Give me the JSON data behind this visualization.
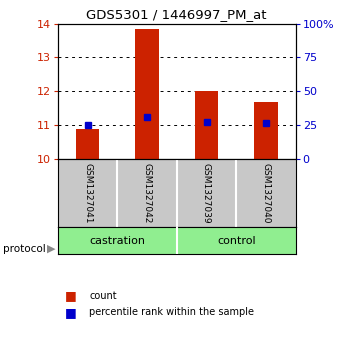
{
  "title": "GDS5301 / 1446997_PM_at",
  "samples": [
    "GSM1327041",
    "GSM1327042",
    "GSM1327039",
    "GSM1327040"
  ],
  "bar_tops": [
    10.9,
    13.85,
    12.0,
    11.7
  ],
  "bar_bottom": 10.0,
  "percentile_vals": [
    11.0,
    11.25,
    11.1,
    11.08
  ],
  "ylim_left": [
    10,
    14
  ],
  "ylim_right": [
    0,
    100
  ],
  "yticks_left": [
    10,
    11,
    12,
    13,
    14
  ],
  "yticks_right": [
    0,
    25,
    50,
    75,
    100
  ],
  "ytick_labels_right": [
    "0",
    "25",
    "50",
    "75",
    "100%"
  ],
  "bar_color": "#CC2200",
  "percentile_color": "#0000CC",
  "background_color": "#FFFFFF",
  "sample_box_color": "#C8C8C8",
  "group_box_color": "#90EE90",
  "legend_count_label": "count",
  "legend_pct_label": "percentile rank within the sample",
  "protocol_label": "protocol"
}
